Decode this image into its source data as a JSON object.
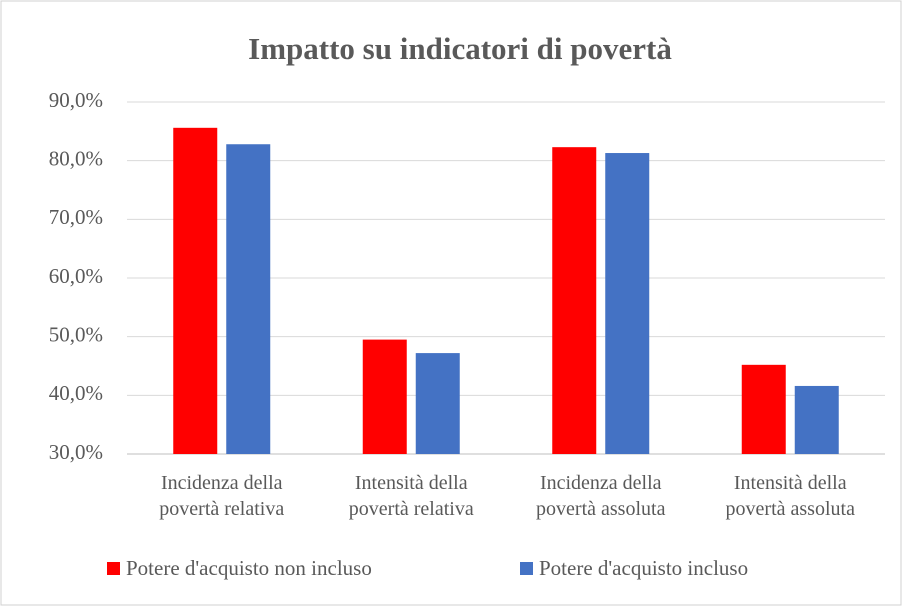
{
  "chart_data": {
    "type": "bar",
    "title": "Impatto su indicatori di povertà",
    "categories": [
      "Incidenza della povertà relativa",
      "Intensità della povertà relativa",
      "Incidenza della povertà assoluta",
      "Intensità della povertà assoluta"
    ],
    "series": [
      {
        "name": "Potere d'acquisto non incluso",
        "color": "#ff0000",
        "values": [
          85.6,
          49.5,
          82.3,
          45.2
        ]
      },
      {
        "name": "Potere d'acquisto incluso",
        "color": "#4472c4",
        "values": [
          82.8,
          47.2,
          81.3,
          41.6
        ]
      }
    ],
    "ylim": [
      30,
      90
    ],
    "yticks": [
      {
        "value": 30,
        "label": "30,0%"
      },
      {
        "value": 40,
        "label": "40,0%"
      },
      {
        "value": 50,
        "label": "50,0%"
      },
      {
        "value": 60,
        "label": "60,0%"
      },
      {
        "value": 70,
        "label": "70,0%"
      },
      {
        "value": 80,
        "label": "80,0%"
      },
      {
        "value": 90,
        "label": "90,0%"
      }
    ],
    "grid": true,
    "legend": "bottom"
  }
}
